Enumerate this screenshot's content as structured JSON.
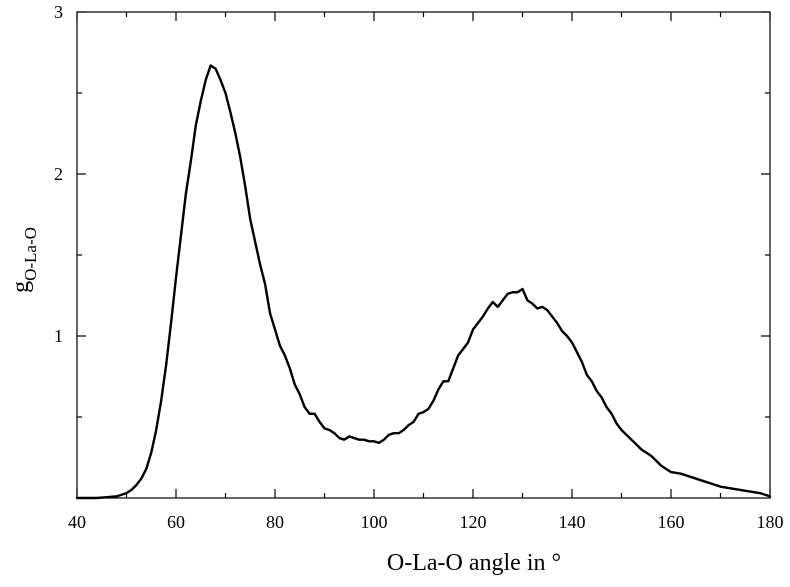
{
  "chart_data": {
    "type": "line",
    "title": "",
    "xlabel": "O-La-O angle in °",
    "ylabel": {
      "base": "g",
      "subscript": "O-La-O"
    },
    "xlim": [
      40,
      180
    ],
    "ylim": [
      0,
      3
    ],
    "xticks": [
      40,
      60,
      80,
      100,
      120,
      140,
      160,
      180
    ],
    "xtick_labels": [
      "40",
      "60",
      "80",
      "100",
      "120",
      "140",
      "160",
      "180"
    ],
    "yticks": [
      1,
      2,
      3
    ],
    "ytick_labels": [
      "1",
      "2",
      "3"
    ],
    "minor_yticks": [
      0.5,
      1.5,
      2.5
    ],
    "minor_xticks": [
      50,
      70,
      90,
      110,
      130,
      150,
      170
    ],
    "grid": false,
    "legend": "none",
    "series": [
      {
        "x": [
          40,
          42,
          44,
          46,
          48,
          50,
          51,
          52,
          53,
          54,
          55,
          56,
          57,
          58,
          59,
          60,
          61,
          62,
          63,
          64,
          65,
          66,
          67,
          68,
          69,
          70,
          71,
          72,
          73,
          74,
          75,
          76,
          77,
          78,
          79,
          80,
          81,
          82,
          83,
          84,
          85,
          86,
          87,
          88,
          89,
          90,
          91,
          92,
          93,
          94,
          95,
          96,
          97,
          98,
          99,
          100,
          101,
          102,
          103,
          104,
          105,
          106,
          107,
          108,
          109,
          110,
          111,
          112,
          113,
          114,
          115,
          116,
          117,
          118,
          119,
          120,
          121,
          122,
          123,
          124,
          125,
          126,
          127,
          128,
          129,
          130,
          131,
          132,
          133,
          134,
          135,
          136,
          137,
          138,
          139,
          140,
          141,
          142,
          143,
          144,
          145,
          146,
          147,
          148,
          149,
          150,
          152,
          154,
          156,
          158,
          160,
          162,
          164,
          166,
          168,
          170,
          172,
          174,
          176,
          178,
          180
        ],
        "values": [
          0.0,
          0.0,
          0.0,
          0.005,
          0.01,
          0.03,
          0.05,
          0.08,
          0.12,
          0.18,
          0.28,
          0.42,
          0.6,
          0.82,
          1.08,
          1.36,
          1.62,
          1.88,
          2.08,
          2.3,
          2.45,
          2.58,
          2.67,
          2.65,
          2.58,
          2.5,
          2.38,
          2.25,
          2.1,
          1.92,
          1.72,
          1.58,
          1.44,
          1.32,
          1.14,
          1.04,
          0.94,
          0.88,
          0.8,
          0.7,
          0.64,
          0.56,
          0.52,
          0.52,
          0.47,
          0.43,
          0.42,
          0.4,
          0.37,
          0.36,
          0.38,
          0.37,
          0.36,
          0.36,
          0.35,
          0.35,
          0.34,
          0.36,
          0.39,
          0.4,
          0.4,
          0.42,
          0.45,
          0.47,
          0.52,
          0.53,
          0.55,
          0.6,
          0.67,
          0.72,
          0.72,
          0.8,
          0.88,
          0.92,
          0.96,
          1.04,
          1.08,
          1.12,
          1.17,
          1.21,
          1.18,
          1.22,
          1.26,
          1.27,
          1.27,
          1.29,
          1.22,
          1.2,
          1.17,
          1.18,
          1.16,
          1.12,
          1.08,
          1.03,
          1.0,
          0.96,
          0.9,
          0.84,
          0.76,
          0.72,
          0.66,
          0.62,
          0.56,
          0.52,
          0.46,
          0.42,
          0.36,
          0.3,
          0.26,
          0.2,
          0.16,
          0.15,
          0.13,
          0.11,
          0.09,
          0.07,
          0.06,
          0.05,
          0.04,
          0.03,
          0.01
        ]
      }
    ]
  }
}
